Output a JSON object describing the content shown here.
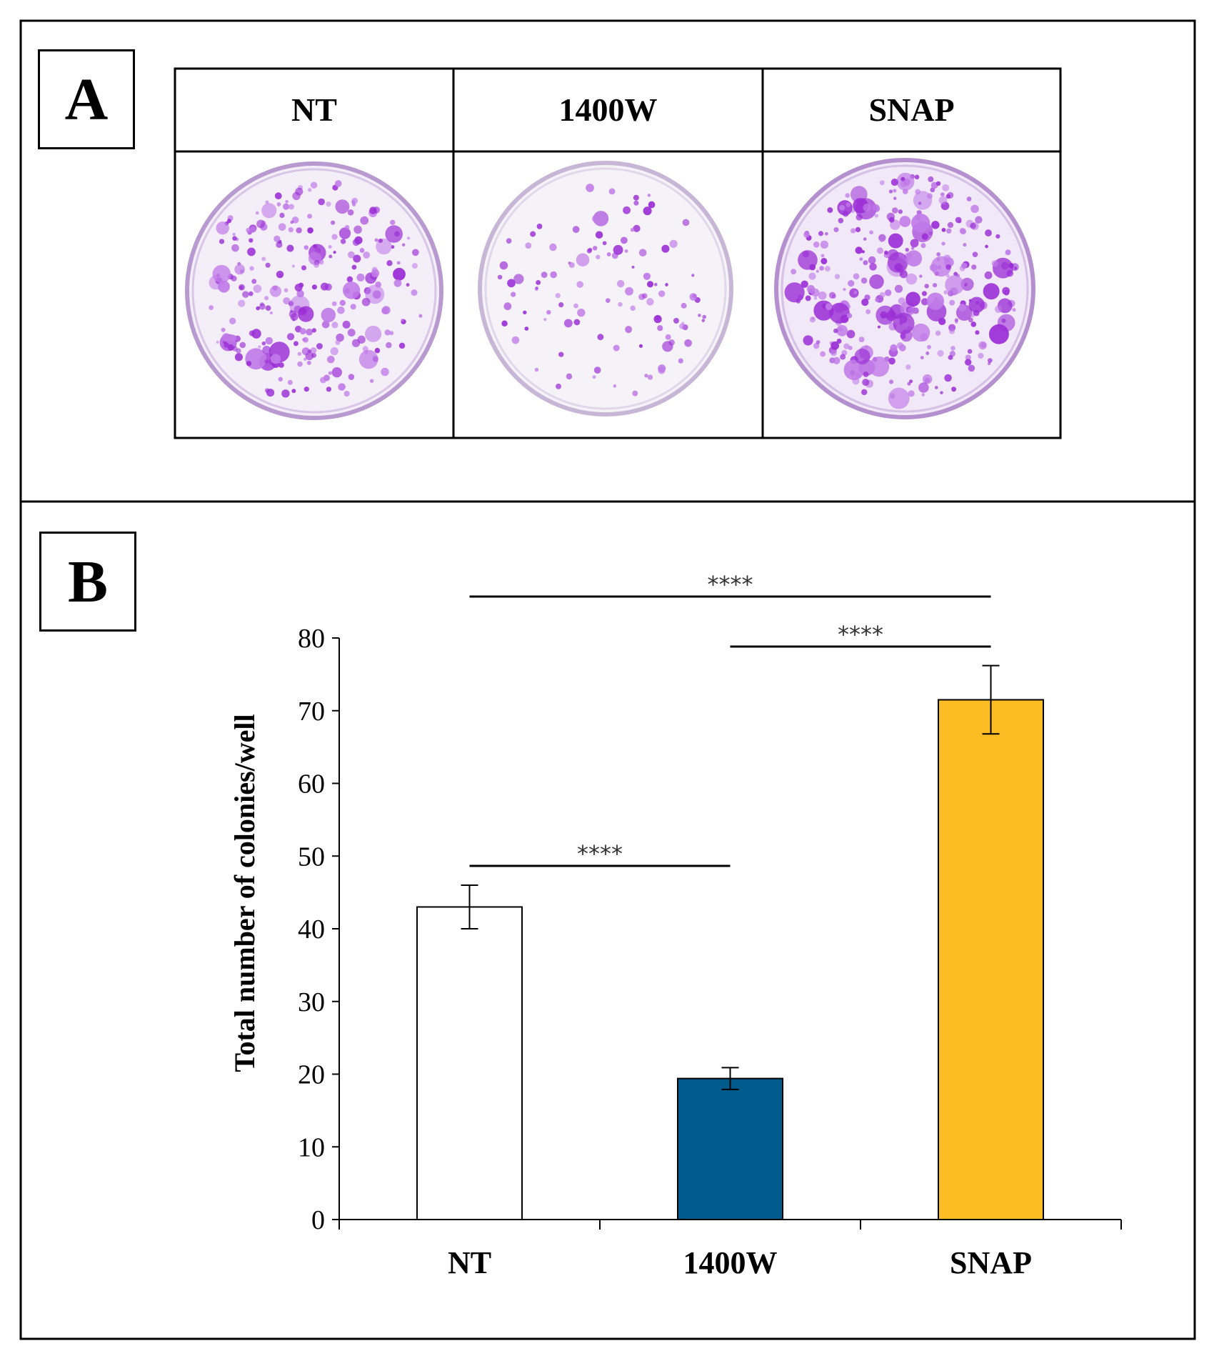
{
  "panel_a": {
    "label": "A",
    "columns": [
      "NT",
      "1400W",
      "SNAP"
    ]
  },
  "panel_b": {
    "label": "B"
  },
  "colors": {
    "stain": "#9b2fd6",
    "stain_light": "#c07ae8",
    "dish_bg": "#f3eef7",
    "bar_nt": "#ffffff",
    "bar_1400w": "#005a8c",
    "bar_snap": "#fcbc24"
  },
  "chart_data": {
    "type": "bar",
    "categories": [
      "NT",
      "1400W",
      "SNAP"
    ],
    "values": [
      43,
      19.4,
      71.5
    ],
    "errors": [
      3,
      1.5,
      4.7
    ],
    "ylabel": "Total number of colonies/well",
    "xlabel": "",
    "ylim": [
      0,
      80
    ],
    "yticks": [
      0,
      10,
      20,
      30,
      40,
      50,
      60,
      70,
      80
    ],
    "grid": false,
    "significance": [
      {
        "from": 0,
        "to": 2,
        "label": "****"
      },
      {
        "from": 1,
        "to": 2,
        "label": "****"
      },
      {
        "from": 0,
        "to": 1,
        "label": "****"
      }
    ]
  }
}
